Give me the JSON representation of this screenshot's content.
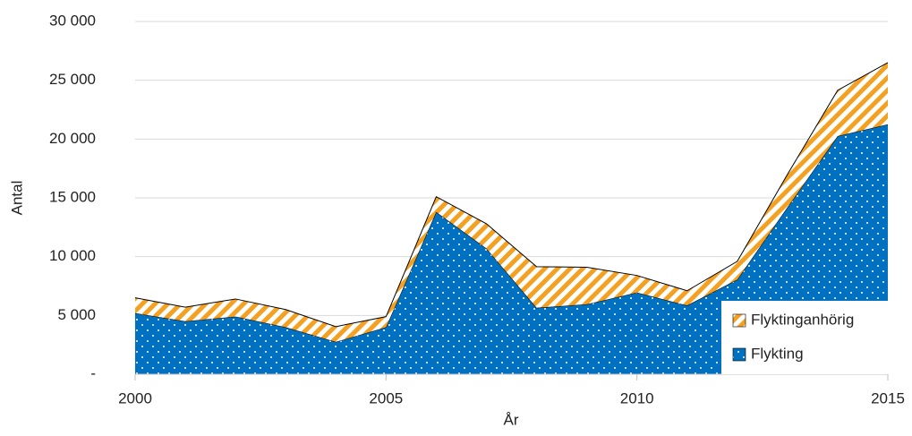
{
  "chart_data": {
    "type": "stacked_area",
    "x_label": "År",
    "y_label": "Antal",
    "x": [
      2000,
      2001,
      2002,
      2003,
      2004,
      2005,
      2006,
      2007,
      2008,
      2009,
      2010,
      2011,
      2012,
      2013,
      2014,
      2015
    ],
    "series": [
      {
        "name": "Flykting",
        "color": "#0070c0",
        "values": [
          5200,
          4500,
          4900,
          4000,
          2750,
          4000,
          13800,
          10700,
          5650,
          5950,
          6950,
          5850,
          8050,
          14200,
          20250,
          21250
        ]
      },
      {
        "name": "Flyktinganhörig",
        "color": "#f4a020",
        "values": [
          1300,
          1200,
          1500,
          1500,
          1300,
          900,
          1300,
          2100,
          3500,
          3150,
          1450,
          1250,
          1550,
          2800,
          3900,
          5250
        ]
      }
    ],
    "xlim": [
      2000,
      2015
    ],
    "xticks": [
      2000,
      2005,
      2010,
      2015
    ],
    "ylim": [
      0,
      30000
    ],
    "yticks": [
      {
        "value": 0,
        "label": "-"
      },
      {
        "value": 5000,
        "label": "5 000"
      },
      {
        "value": 10000,
        "label": "10 000"
      },
      {
        "value": 15000,
        "label": "15 000"
      },
      {
        "value": 20000,
        "label": "20 000"
      },
      {
        "value": 25000,
        "label": "25 000"
      },
      {
        "value": 30000,
        "label": "30 000"
      }
    ],
    "grid": true,
    "legend": "lower right"
  }
}
